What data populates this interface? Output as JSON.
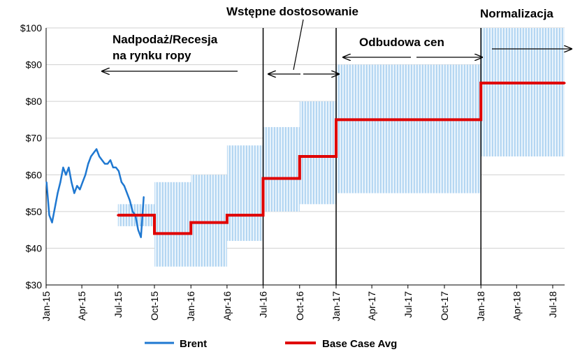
{
  "chart_data": {
    "type": "line",
    "title": "",
    "xlabel": "",
    "ylabel": "",
    "ylim": [
      30,
      100
    ],
    "y_ticks": [
      "$30",
      "$40",
      "$50",
      "$60",
      "$70",
      "$80",
      "$90",
      "$100"
    ],
    "y_tick_values": [
      30,
      40,
      50,
      60,
      70,
      80,
      90,
      100
    ],
    "x_ticks": [
      "Jan-15",
      "Apr-15",
      "Jul-15",
      "Oct-15",
      "Jan-16",
      "Apr-16",
      "Jul-16",
      "Oct-16",
      "Jan-17",
      "Apr-17",
      "Jul-17",
      "Oct-17",
      "Jan-18",
      "Apr-18",
      "Jul-18"
    ],
    "grid": "horizontal",
    "legend_position": "bottom",
    "colors": {
      "brent": "#1f78d1",
      "base_case": "#e00000",
      "band": "#bfdcf5",
      "grid": "#d0d0d0",
      "divider": "#000000"
    },
    "series": [
      {
        "name": "Brent",
        "x": [
          "2015-01-02",
          "2015-01-09",
          "2015-01-16",
          "2015-01-23",
          "2015-01-30",
          "2015-02-06",
          "2015-02-13",
          "2015-02-20",
          "2015-02-27",
          "2015-03-06",
          "2015-03-13",
          "2015-03-20",
          "2015-03-27",
          "2015-04-03",
          "2015-04-10",
          "2015-04-17",
          "2015-04-24",
          "2015-05-01",
          "2015-05-08",
          "2015-05-15",
          "2015-05-22",
          "2015-05-29",
          "2015-06-05",
          "2015-06-12",
          "2015-06-19",
          "2015-06-26",
          "2015-07-03",
          "2015-07-10",
          "2015-07-17",
          "2015-07-24",
          "2015-07-31",
          "2015-08-07",
          "2015-08-14",
          "2015-08-21",
          "2015-08-28",
          "2015-09-04"
        ],
        "values": [
          58,
          49,
          47,
          51,
          55,
          58,
          62,
          60,
          62,
          58,
          55,
          57,
          56,
          58,
          60,
          63,
          65,
          66,
          67,
          65,
          64,
          63,
          63,
          64,
          62,
          62,
          61,
          58,
          57,
          55,
          53,
          50,
          49,
          45,
          43,
          54
        ]
      },
      {
        "name": "Base Case Avg",
        "x": [
          "2015-07-01",
          "2015-10-01",
          "2016-01-01",
          "2016-04-01",
          "2016-07-01",
          "2016-10-01",
          "2017-01-01",
          "2018-01-01",
          "2018-07-31"
        ],
        "values": [
          49,
          44,
          47,
          49,
          59,
          65,
          75,
          85,
          85
        ]
      }
    ],
    "range_band": [
      {
        "from": "2015-07-01",
        "to": "2015-10-01",
        "low": 46,
        "high": 52
      },
      {
        "from": "2015-10-01",
        "to": "2016-01-01",
        "low": 35,
        "high": 58
      },
      {
        "from": "2016-01-01",
        "to": "2016-04-01",
        "low": 35,
        "high": 60
      },
      {
        "from": "2016-04-01",
        "to": "2016-07-01",
        "low": 42,
        "high": 68
      },
      {
        "from": "2016-07-01",
        "to": "2016-10-01",
        "low": 50,
        "high": 73
      },
      {
        "from": "2016-10-01",
        "to": "2017-01-01",
        "low": 52,
        "high": 80
      },
      {
        "from": "2017-01-01",
        "to": "2018-01-01",
        "low": 55,
        "high": 90
      },
      {
        "from": "2018-01-01",
        "to": "2018-07-31",
        "low": 65,
        "high": 100
      }
    ],
    "dividers": [
      "2016-07-01",
      "2017-01-01",
      "2018-01-01"
    ],
    "annotations": {
      "phase1_line1": "Nadpodaż/Recesja",
      "phase1_line2": "na rynku ropy",
      "phase2": "Wstępne dostosowanie",
      "phase3": "Odbudowa cen",
      "phase4": "Normalizacja"
    },
    "legend": [
      {
        "label": "Brent",
        "color": "#1f78d1"
      },
      {
        "label": "Base Case Avg",
        "color": "#e00000"
      }
    ]
  }
}
